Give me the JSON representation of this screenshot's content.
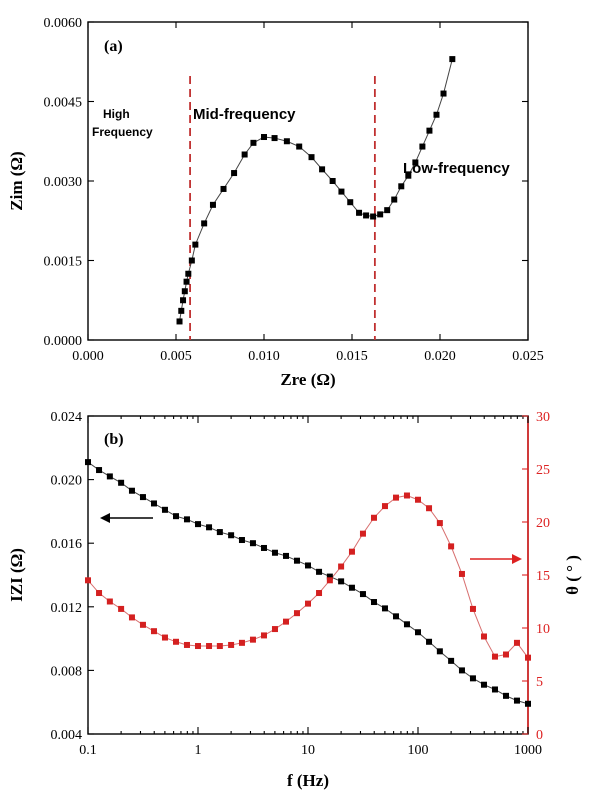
{
  "chart_data": [
    {
      "type": "scatter",
      "panel_label": "(a)",
      "xlabel": "Zre (Ω)",
      "ylabel": "Zim (Ω)",
      "xlim": [
        0.0,
        0.025
      ],
      "ylim": [
        0.0,
        0.006
      ],
      "x_ticks": [
        "0.000",
        "0.005",
        "0.010",
        "0.015",
        "0.020",
        "0.025"
      ],
      "y_ticks": [
        "0.0000",
        "0.0015",
        "0.0030",
        "0.0045",
        "0.0060"
      ],
      "region_labels": {
        "high_line1": "High",
        "high_line2": "Frequency",
        "mid": "Mid-frequency",
        "low": "Low-frequency"
      },
      "dividers_x": [
        0.0058,
        0.0163
      ],
      "series": [
        {
          "color": "#000000",
          "marker": "square",
          "points": [
            [
              0.0052,
              0.00035
            ],
            [
              0.0053,
              0.00055
            ],
            [
              0.0054,
              0.00075
            ],
            [
              0.0055,
              0.00092
            ],
            [
              0.0056,
              0.0011
            ],
            [
              0.0057,
              0.00125
            ],
            [
              0.0059,
              0.0015
            ],
            [
              0.0061,
              0.0018
            ],
            [
              0.0066,
              0.0022
            ],
            [
              0.0071,
              0.00255
            ],
            [
              0.0077,
              0.00285
            ],
            [
              0.0083,
              0.00315
            ],
            [
              0.0089,
              0.0035
            ],
            [
              0.0094,
              0.00372
            ],
            [
              0.01,
              0.00383
            ],
            [
              0.0106,
              0.00381
            ],
            [
              0.0113,
              0.00375
            ],
            [
              0.012,
              0.00365
            ],
            [
              0.0127,
              0.00345
            ],
            [
              0.0133,
              0.00322
            ],
            [
              0.0139,
              0.003
            ],
            [
              0.0144,
              0.0028
            ],
            [
              0.0149,
              0.0026
            ],
            [
              0.0154,
              0.0024
            ],
            [
              0.0158,
              0.00235
            ],
            [
              0.0162,
              0.00233
            ],
            [
              0.0166,
              0.00237
            ],
            [
              0.017,
              0.00245
            ],
            [
              0.0174,
              0.00265
            ],
            [
              0.0178,
              0.0029
            ],
            [
              0.0182,
              0.0031
            ],
            [
              0.0186,
              0.00335
            ],
            [
              0.019,
              0.00365
            ],
            [
              0.0194,
              0.00395
            ],
            [
              0.0198,
              0.00425
            ],
            [
              0.0202,
              0.00465
            ],
            [
              0.0207,
              0.0053
            ]
          ]
        }
      ]
    },
    {
      "type": "scatter",
      "panel_label": "(b)",
      "xlabel": "f (Hz)",
      "ylabel": "IZI (Ω)",
      "y2label": "θ ( ° )",
      "xscale": "log",
      "xlim": [
        0.1,
        1000
      ],
      "ylim": [
        0.004,
        0.024
      ],
      "y2lim": [
        0,
        30
      ],
      "x_ticks": [
        "0.1",
        "1",
        "10",
        "100",
        "1000"
      ],
      "y_ticks": [
        "0.004",
        "0.008",
        "0.012",
        "0.016",
        "0.020",
        "0.024"
      ],
      "y2_ticks": [
        "0",
        "5",
        "10",
        "15",
        "20",
        "25",
        "30"
      ],
      "series": [
        {
          "color": "#000000",
          "axis": "left",
          "marker": "square",
          "points": [
            [
              0.1,
              0.0211
            ],
            [
              0.126,
              0.0206
            ],
            [
              0.158,
              0.0202
            ],
            [
              0.2,
              0.0198
            ],
            [
              0.251,
              0.0193
            ],
            [
              0.316,
              0.0189
            ],
            [
              0.398,
              0.0185
            ],
            [
              0.501,
              0.0181
            ],
            [
              0.631,
              0.0177
            ],
            [
              0.794,
              0.0175
            ],
            [
              1.0,
              0.0172
            ],
            [
              1.26,
              0.017
            ],
            [
              1.58,
              0.0167
            ],
            [
              2.0,
              0.0165
            ],
            [
              2.51,
              0.0162
            ],
            [
              3.16,
              0.016
            ],
            [
              3.98,
              0.0157
            ],
            [
              5.01,
              0.0154
            ],
            [
              6.31,
              0.0152
            ],
            [
              7.94,
              0.0149
            ],
            [
              10.0,
              0.0146
            ],
            [
              12.6,
              0.0142
            ],
            [
              15.8,
              0.0139
            ],
            [
              20.0,
              0.0136
            ],
            [
              25.1,
              0.0132
            ],
            [
              31.6,
              0.0128
            ],
            [
              39.8,
              0.0123
            ],
            [
              50.1,
              0.0119
            ],
            [
              63.1,
              0.0114
            ],
            [
              79.4,
              0.0109
            ],
            [
              100,
              0.0104
            ],
            [
              126,
              0.0098
            ],
            [
              158,
              0.0092
            ],
            [
              200,
              0.0086
            ],
            [
              251,
              0.008
            ],
            [
              316,
              0.0075
            ],
            [
              398,
              0.0071
            ],
            [
              501,
              0.0068
            ],
            [
              631,
              0.0064
            ],
            [
              794,
              0.0061
            ],
            [
              1000,
              0.0059
            ]
          ]
        },
        {
          "color": "#d42020",
          "axis": "right",
          "marker": "square",
          "points": [
            [
              0.1,
              14.5
            ],
            [
              0.126,
              13.3
            ],
            [
              0.158,
              12.5
            ],
            [
              0.2,
              11.8
            ],
            [
              0.251,
              11.0
            ],
            [
              0.316,
              10.3
            ],
            [
              0.398,
              9.7
            ],
            [
              0.501,
              9.1
            ],
            [
              0.631,
              8.7
            ],
            [
              0.794,
              8.4
            ],
            [
              1.0,
              8.3
            ],
            [
              1.26,
              8.3
            ],
            [
              1.58,
              8.3
            ],
            [
              2.0,
              8.4
            ],
            [
              2.51,
              8.6
            ],
            [
              3.16,
              8.9
            ],
            [
              3.98,
              9.3
            ],
            [
              5.01,
              9.9
            ],
            [
              6.31,
              10.6
            ],
            [
              7.94,
              11.4
            ],
            [
              10.0,
              12.3
            ],
            [
              12.6,
              13.3
            ],
            [
              15.8,
              14.5
            ],
            [
              20.0,
              15.8
            ],
            [
              25.1,
              17.2
            ],
            [
              31.6,
              18.9
            ],
            [
              39.8,
              20.4
            ],
            [
              50.1,
              21.5
            ],
            [
              63.1,
              22.3
            ],
            [
              79.4,
              22.5
            ],
            [
              100,
              22.1
            ],
            [
              126,
              21.3
            ],
            [
              158,
              19.9
            ],
            [
              200,
              17.7
            ],
            [
              251,
              15.1
            ],
            [
              316,
              11.8
            ],
            [
              398,
              9.2
            ],
            [
              501,
              7.3
            ],
            [
              631,
              7.5
            ],
            [
              794,
              8.6
            ],
            [
              1000,
              7.2
            ]
          ]
        }
      ]
    }
  ]
}
